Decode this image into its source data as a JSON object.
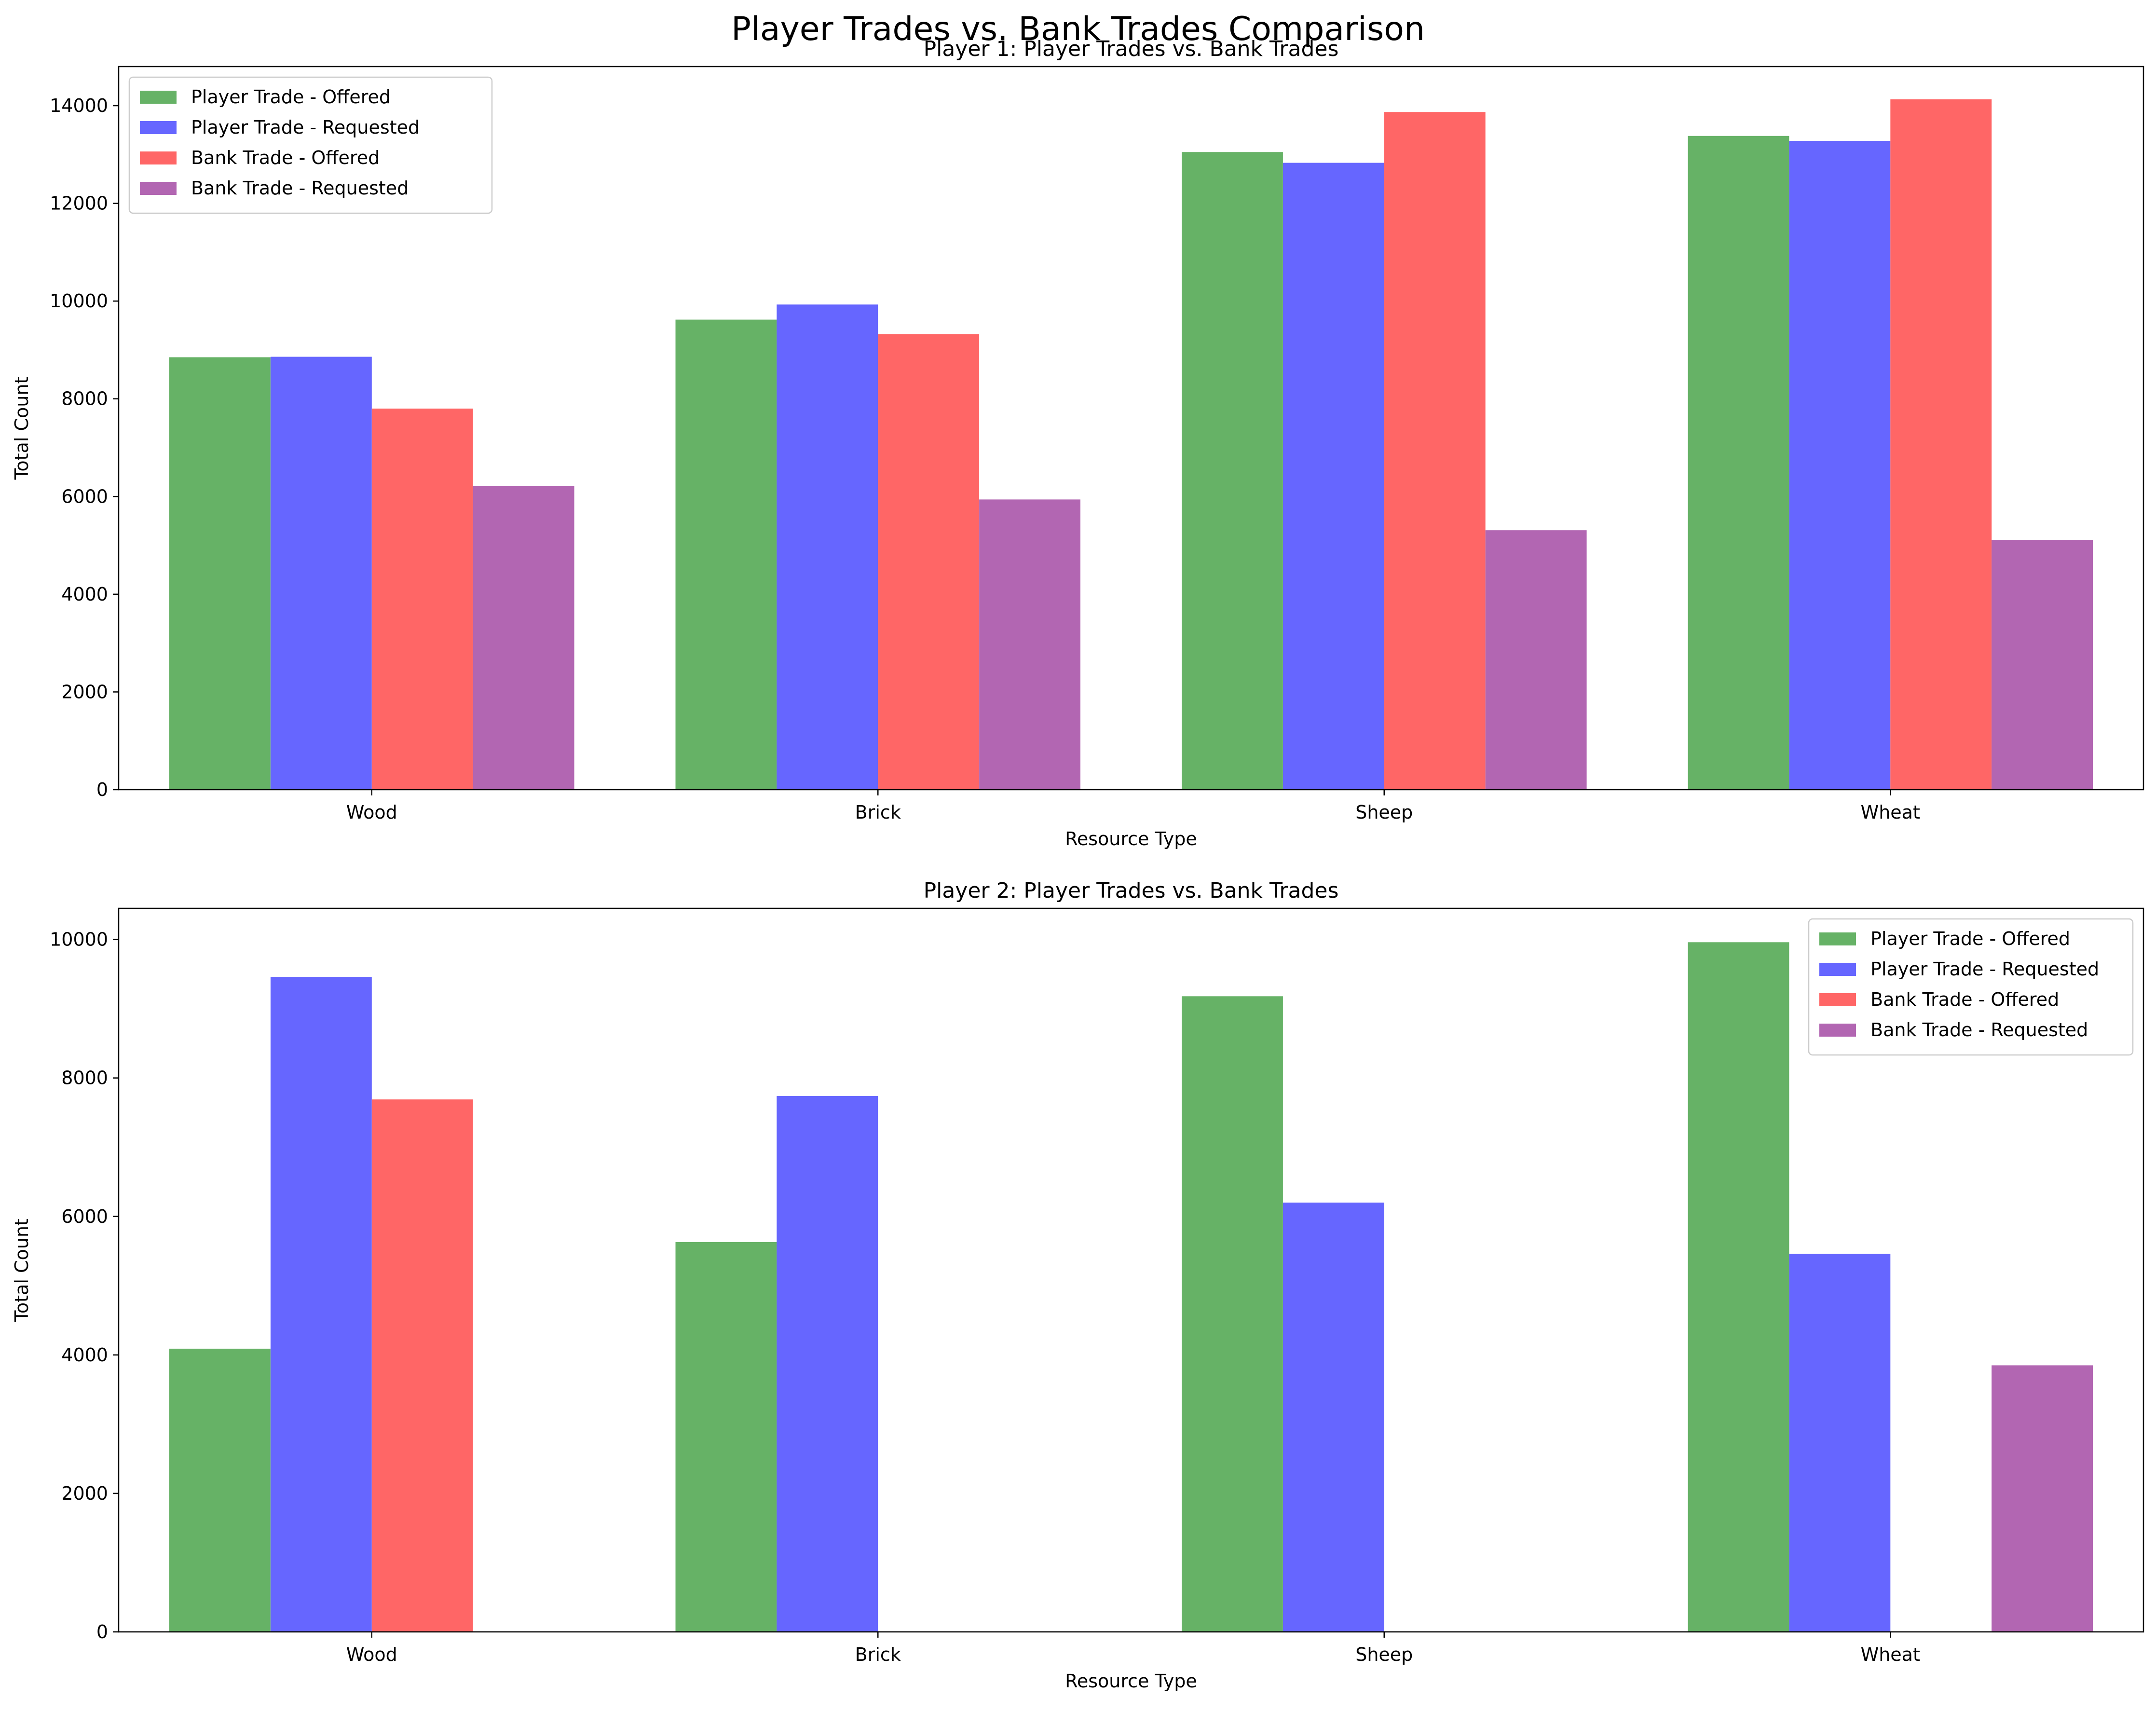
{
  "figure": {
    "suptitle": "Player Trades vs. Bank Trades Comparison"
  },
  "colors": {
    "player_offered": "#66b266",
    "player_requested": "#6666ff",
    "bank_offered": "#ff6666",
    "bank_requested": "#b266b2"
  },
  "chart_data": [
    {
      "type": "bar",
      "title": "Player 1: Player Trades vs. Bank Trades",
      "xlabel": "Resource Type",
      "ylabel": "Total Count",
      "categories": [
        "Wood",
        "Brick",
        "Sheep",
        "Wheat"
      ],
      "ylim": [
        0,
        14800
      ],
      "yticks": [
        0,
        2000,
        4000,
        6000,
        8000,
        10000,
        12000,
        14000
      ],
      "legend_position": "upper-left",
      "grid": false,
      "series": [
        {
          "name": "Player Trade - Offered",
          "color_key": "player_offered",
          "values": [
            8850,
            9620,
            13050,
            13380
          ]
        },
        {
          "name": "Player Trade - Requested",
          "color_key": "player_requested",
          "values": [
            8860,
            9930,
            12830,
            13280
          ]
        },
        {
          "name": "Bank Trade - Offered",
          "color_key": "bank_offered",
          "values": [
            7800,
            9320,
            13870,
            14130
          ]
        },
        {
          "name": "Bank Trade - Requested",
          "color_key": "bank_requested",
          "values": [
            6210,
            5940,
            5310,
            5110
          ]
        }
      ]
    },
    {
      "type": "bar",
      "title": "Player 2: Player Trades vs. Bank Trades",
      "xlabel": "Resource Type",
      "ylabel": "Total Count",
      "categories": [
        "Wood",
        "Brick",
        "Sheep",
        "Wheat"
      ],
      "ylim": [
        0,
        10450
      ],
      "yticks": [
        0,
        2000,
        4000,
        6000,
        8000,
        10000
      ],
      "legend_position": "upper-right",
      "grid": false,
      "series": [
        {
          "name": "Player Trade - Offered",
          "color_key": "player_offered",
          "values": [
            4090,
            5630,
            9180,
            9960
          ]
        },
        {
          "name": "Player Trade - Requested",
          "color_key": "player_requested",
          "values": [
            9460,
            7740,
            6200,
            5460
          ]
        },
        {
          "name": "Bank Trade - Offered",
          "color_key": "bank_offered",
          "values": [
            7690,
            0,
            0,
            0
          ]
        },
        {
          "name": "Bank Trade - Requested",
          "color_key": "bank_requested",
          "values": [
            0,
            0,
            0,
            3850
          ]
        }
      ]
    }
  ]
}
